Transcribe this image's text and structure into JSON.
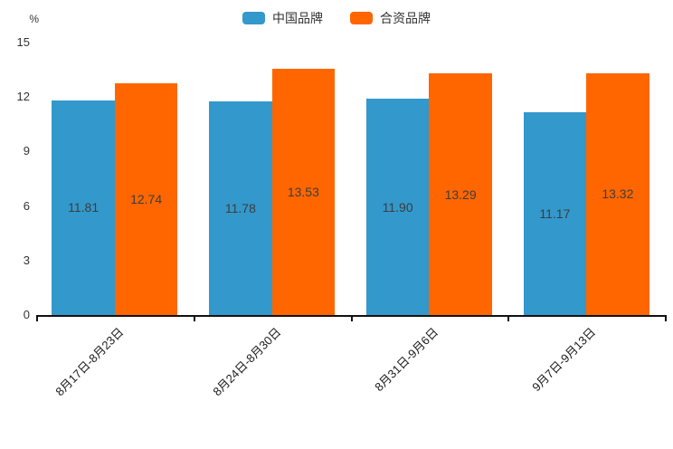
{
  "chart_data": {
    "type": "bar",
    "title": "",
    "xlabel": "",
    "ylabel": "%",
    "ylim": [
      0,
      15
    ],
    "yticks": [
      0,
      3,
      6,
      9,
      12,
      15
    ],
    "grid": false,
    "legend_position": "top-center",
    "categories": [
      "8月17日-8月23日",
      "8月24日-8月30日",
      "8月31日-9月6日",
      "9月7日-9月13日"
    ],
    "series": [
      {
        "name": "中国品牌",
        "color": "#3398cc",
        "values": [
          11.81,
          11.78,
          11.9,
          11.17
        ]
      },
      {
        "name": "合资品牌",
        "color": "#ff6600",
        "values": [
          12.74,
          13.53,
          13.29,
          13.32
        ]
      }
    ],
    "value_label_decimals": 2
  },
  "colors": {
    "axis": "#111111",
    "bar_label_text": "#3d3d3d",
    "tick_text": "#333333",
    "background": "#ffffff"
  }
}
